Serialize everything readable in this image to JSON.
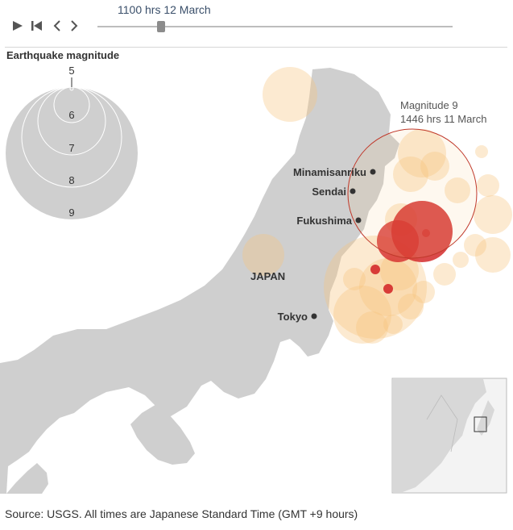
{
  "player": {
    "time_label": "1100 hrs 12 March",
    "buttons": {
      "play": "play-icon",
      "restart": "skip-back-icon",
      "prev": "chevron-left-icon",
      "next": "chevron-right-icon"
    },
    "progress": 0.18
  },
  "legend": {
    "title": "Earthquake magnitude",
    "magnitudes": [
      "5",
      "6",
      "7",
      "8",
      "9"
    ]
  },
  "map": {
    "country_label": "JAPAN",
    "cities": [
      {
        "name": "Minamisanriku"
      },
      {
        "name": "Sendai"
      },
      {
        "name": "Fukushima"
      },
      {
        "name": "Tokyo"
      }
    ],
    "highlight": {
      "line1": "Magnitude 9",
      "line2": "1446 hrs 11 March"
    }
  },
  "colors": {
    "land": "#cfcfcf",
    "quake_old": "#f7c47a",
    "quake_recent": "#d42a2a",
    "ring": "#c0392b"
  },
  "footer": {
    "source": "Source: USGS. All times are Japanese Standard Time (GMT +9 hours)"
  }
}
